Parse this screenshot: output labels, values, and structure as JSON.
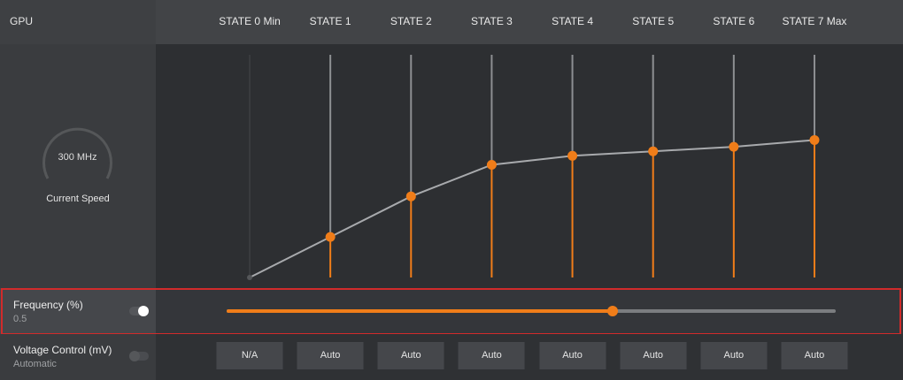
{
  "header": {
    "title": "GPU",
    "states": [
      "STATE 0 Min",
      "STATE 1",
      "STATE 2",
      "STATE 3",
      "STATE 4",
      "STATE 5",
      "STATE 6",
      "STATE 7 Max"
    ]
  },
  "gauge": {
    "value": "300 MHz",
    "caption": "Current Speed"
  },
  "chart_data": {
    "type": "line",
    "categories": [
      "STATE 0 Min",
      "STATE 1",
      "STATE 2",
      "STATE 3",
      "STATE 4",
      "STATE 5",
      "STATE 6",
      "STATE 7 Max"
    ],
    "values": [
      0,
      18,
      36,
      50,
      54,
      56,
      58,
      61
    ],
    "ylim": [
      0,
      100
    ],
    "line_color": "#a8aaad",
    "point_color": "#f07d19"
  },
  "frequency": {
    "label": "Frequency (%)",
    "value": "0.5",
    "slider_fraction": 0.633,
    "toggle_on": true
  },
  "voltage": {
    "label": "Voltage Control (mV)",
    "mode": "Automatic",
    "toggle_on": false,
    "values": [
      "N/A",
      "Auto",
      "Auto",
      "Auto",
      "Auto",
      "Auto",
      "Auto",
      "Auto"
    ]
  },
  "colors": {
    "accent": "#f07d19",
    "highlight": "#d12b2b"
  }
}
